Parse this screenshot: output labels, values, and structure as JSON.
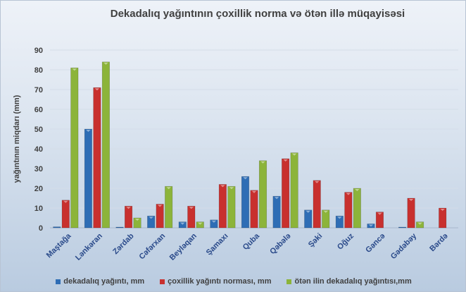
{
  "chart_data": {
    "type": "bar",
    "title": "Dekadalıq yağıntının çoxillik norma  və ötən illə müqayisəsi",
    "xlabel": "",
    "ylabel": "yağıntının miqdarı (mm)",
    "ylim": [
      0,
      90
    ],
    "yticks": [
      0,
      10,
      20,
      30,
      40,
      50,
      60,
      70,
      80,
      90
    ],
    "grid": true,
    "legend_position": "bottom",
    "categories": [
      "Maştağa",
      "Lənkəran",
      "Zərdab",
      "Cəfərxan",
      "Beyləqan",
      "Şamaxı",
      "Quba",
      "Qəbələ",
      "Şəki",
      "Oğuz",
      "Gəncə",
      "Gədəbəy",
      "Bərdə"
    ],
    "series": [
      {
        "name": "dekadalıq yağıntı, mm",
        "color": "#2e6db5",
        "values": [
          0.5,
          50,
          0.2,
          6,
          3,
          4,
          26,
          16,
          9,
          6,
          2,
          0.2,
          0
        ]
      },
      {
        "name": "çoxillik yağıntı norması, mm",
        "color": "#c8302e",
        "values": [
          14,
          71,
          11,
          12,
          11,
          22,
          19,
          35,
          24,
          18,
          8,
          15,
          10
        ]
      },
      {
        "name": "ötən ilin dekadalıq yağıntısı,mm",
        "color": "#8cb43a",
        "values": [
          81,
          84,
          5,
          21,
          3,
          21,
          34,
          38,
          9,
          20,
          0,
          3,
          0
        ]
      }
    ]
  }
}
